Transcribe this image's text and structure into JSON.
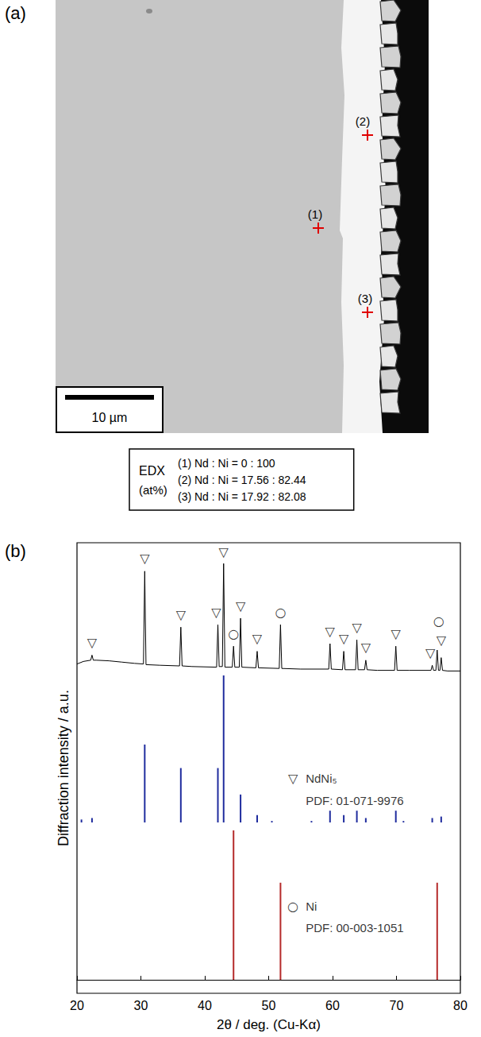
{
  "panel_a": {
    "label": "(a)",
    "points": [
      "(1)",
      "(2)",
      "(3)"
    ],
    "scale_bar": "10 µm",
    "edx": {
      "title": "EDX",
      "unit": "(at%)",
      "rows": [
        "(1) Nd : Ni = 0 : 100",
        "(2) Nd : Ni = 17.56 : 82.44",
        "(3) Nd : Ni = 17.92 : 82.08"
      ]
    }
  },
  "panel_b": {
    "label": "(b)"
  },
  "chart_data": [
    {
      "type": "line",
      "color": "#000000",
      "xlim": [
        20,
        80
      ],
      "ylim": [
        0,
        100
      ],
      "tick_labels": false,
      "x": [
        20,
        21,
        22.15,
        22.35,
        22.55,
        23,
        25,
        27,
        29,
        30.4,
        30.6,
        30.8,
        33,
        36.05,
        36.25,
        36.45,
        38,
        41.85,
        42.05,
        42.25,
        42.75,
        42.95,
        43.15,
        44.3,
        44.5,
        44.7,
        45.4,
        45.6,
        45.8,
        48.0,
        48.2,
        48.4,
        51.65,
        51.85,
        52.05,
        55,
        59.4,
        59.6,
        59.8,
        61.55,
        61.75,
        61.95,
        63.6,
        63.8,
        64.0,
        65.0,
        65.2,
        65.4,
        67,
        69.7,
        69.9,
        70.1,
        72,
        75.4,
        75.6,
        75.8,
        76.17,
        76.37,
        76.57,
        76.8,
        77.0,
        77.2,
        78,
        80
      ],
      "values": [
        9,
        11,
        12,
        16,
        12,
        12,
        11.5,
        10.5,
        9.5,
        9,
        82,
        8.5,
        8,
        7.5,
        38,
        7.5,
        7,
        6.5,
        40,
        7,
        7,
        88,
        6.5,
        6.5,
        23,
        6.5,
        6.5,
        45,
        6.5,
        6,
        19,
        6,
        5.5,
        40,
        5.5,
        5,
        5,
        25,
        5,
        4.5,
        19,
        4.5,
        4.5,
        28,
        4.5,
        4.5,
        12,
        4.5,
        4,
        4,
        23,
        4,
        4,
        4,
        8,
        4,
        4,
        20,
        4,
        4,
        14,
        4,
        3.5,
        3.5
      ],
      "annotations": [
        {
          "text": "▽",
          "x": 22.35,
          "y": 26
        },
        {
          "text": "▽",
          "x": 30.6,
          "y": 92
        },
        {
          "text": "▽",
          "x": 36.25,
          "y": 48
        },
        {
          "text": "▽",
          "x": 41.8,
          "y": 50
        },
        {
          "text": "▽",
          "x": 42.95,
          "y": 97
        },
        {
          "text": "○",
          "x": 44.5,
          "y": 33
        },
        {
          "text": "▽",
          "x": 45.6,
          "y": 55
        },
        {
          "text": "▽",
          "x": 48.2,
          "y": 29
        },
        {
          "text": "○",
          "x": 51.85,
          "y": 50
        },
        {
          "text": "▽",
          "x": 59.6,
          "y": 35
        },
        {
          "text": "▽",
          "x": 61.75,
          "y": 29
        },
        {
          "text": "▽",
          "x": 63.8,
          "y": 38
        },
        {
          "text": "▽",
          "x": 65.2,
          "y": 22
        },
        {
          "text": "▽",
          "x": 69.9,
          "y": 33
        },
        {
          "text": "▽",
          "x": 75.3,
          "y": 18
        },
        {
          "text": "▽",
          "x": 77.0,
          "y": 28
        },
        {
          "text": "○",
          "x": 76.6,
          "y": 43
        }
      ]
    },
    {
      "type": "bar",
      "color": "#1f2c9e",
      "xlim": [
        20,
        80
      ],
      "ylim": [
        0,
        100
      ],
      "tick_labels": false,
      "y_label": "Diffraction intensity / a.u.",
      "x": [
        20.7,
        22.35,
        30.6,
        36.25,
        42.05,
        42.95,
        45.6,
        48.2,
        50.5,
        56.7,
        59.6,
        61.75,
        63.8,
        65.2,
        69.9,
        71.1,
        75.6,
        77.0
      ],
      "values": [
        2,
        3,
        53,
        37,
        37,
        100,
        19,
        5,
        1,
        1,
        8,
        5,
        8,
        3,
        8,
        1,
        3,
        4
      ],
      "annotations": [
        {
          "text": "▽",
          "x": 53.8,
          "y": 30
        },
        {
          "text": "NdNi₅",
          "x": 55.8,
          "y": 30
        },
        {
          "text": "PDF: 01-071-9976",
          "x": 55.8,
          "y": 15
        }
      ]
    },
    {
      "type": "bar",
      "color": "#b52a2a",
      "xlim": [
        20,
        80
      ],
      "ylim": [
        -9,
        100
      ],
      "xticks": [
        20,
        30,
        40,
        50,
        60,
        70,
        80
      ],
      "tick_labels": "x",
      "x_label": "2θ / deg. (Cu-Kα)",
      "x": [
        44.5,
        51.85,
        76.37
      ],
      "values": [
        100,
        65,
        65
      ],
      "annotations": [
        {
          "text": "○",
          "x": 53.8,
          "y": 49
        },
        {
          "text": "Ni",
          "x": 55.8,
          "y": 49
        },
        {
          "text": "PDF: 00-003-1051",
          "x": 55.8,
          "y": 35
        }
      ]
    }
  ]
}
